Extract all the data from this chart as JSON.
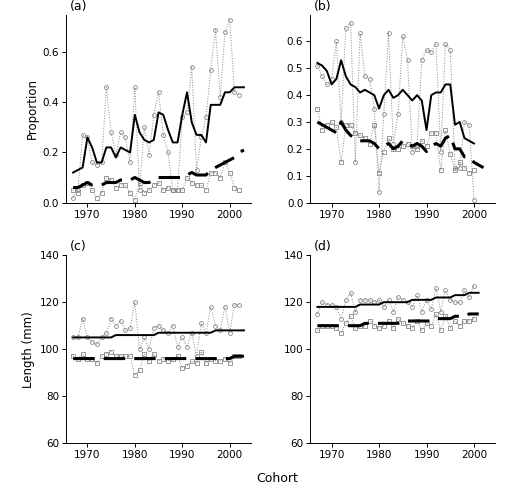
{
  "cohorts": [
    1967,
    1968,
    1969,
    1970,
    1971,
    1972,
    1973,
    1974,
    1975,
    1976,
    1977,
    1978,
    1979,
    1980,
    1981,
    1982,
    1983,
    1984,
    1985,
    1986,
    1987,
    1988,
    1989,
    1990,
    1991,
    1992,
    1993,
    1994,
    1995,
    1996,
    1997,
    1998,
    1999,
    2000,
    2001,
    2002,
    2003
  ],
  "panel_a": {
    "pred_solid": [
      0.12,
      0.13,
      0.14,
      0.26,
      0.22,
      0.16,
      0.16,
      0.22,
      0.22,
      0.18,
      0.22,
      0.21,
      0.2,
      0.35,
      0.28,
      0.25,
      0.24,
      0.25,
      0.36,
      0.35,
      0.29,
      0.24,
      0.24,
      0.35,
      0.44,
      0.32,
      0.27,
      0.27,
      0.24,
      0.39,
      0.39,
      0.39,
      0.44,
      0.44,
      0.46,
      0.46,
      0.46
    ],
    "obs_dotted_circle": [
      0.02,
      0.05,
      0.27,
      0.26,
      0.16,
      0.15,
      0.16,
      0.46,
      0.28,
      0.19,
      0.28,
      0.26,
      0.16,
      0.46,
      0.05,
      0.3,
      0.19,
      0.35,
      0.44,
      0.27,
      0.2,
      0.05,
      0.05,
      0.34,
      0.36,
      0.54,
      0.13,
      0.26,
      0.34,
      0.53,
      0.69,
      0.42,
      0.68,
      0.73,
      0.44,
      0.43,
      null
    ],
    "pred_dashed": [
      0.06,
      0.06,
      0.07,
      0.08,
      0.07,
      0.07,
      0.07,
      0.08,
      0.08,
      0.08,
      0.09,
      0.09,
      0.09,
      0.1,
      0.09,
      0.08,
      0.08,
      0.09,
      0.1,
      0.1,
      0.1,
      0.1,
      0.1,
      0.1,
      0.11,
      0.12,
      0.11,
      0.11,
      0.11,
      0.13,
      0.14,
      0.15,
      0.16,
      0.17,
      0.18,
      0.2,
      0.21
    ],
    "obs_dotted_square": [
      0.05,
      0.04,
      0.07,
      0.08,
      0.05,
      0.02,
      0.04,
      0.1,
      0.09,
      0.06,
      0.07,
      0.07,
      0.04,
      0.01,
      0.08,
      0.04,
      0.05,
      0.07,
      0.08,
      0.05,
      0.06,
      0.05,
      0.05,
      0.05,
      0.1,
      0.08,
      0.07,
      0.07,
      0.05,
      0.12,
      0.12,
      0.1,
      0.16,
      0.12,
      0.06,
      0.05,
      null
    ],
    "ylim": [
      0,
      0.75
    ],
    "yticks": [
      0.0,
      0.2,
      0.4,
      0.6
    ]
  },
  "panel_b": {
    "pred_solid": [
      0.52,
      0.51,
      0.49,
      0.44,
      0.46,
      0.53,
      0.47,
      0.44,
      0.43,
      0.41,
      0.42,
      0.41,
      0.4,
      0.35,
      0.4,
      0.42,
      0.39,
      0.4,
      0.42,
      0.4,
      0.38,
      0.4,
      0.38,
      0.27,
      0.4,
      0.41,
      0.41,
      0.44,
      0.44,
      0.29,
      0.3,
      0.24,
      0.23,
      0.22,
      null,
      null,
      null
    ],
    "obs_dotted_circle": [
      0.51,
      0.47,
      0.44,
      0.46,
      0.6,
      0.3,
      0.65,
      0.67,
      0.15,
      0.63,
      0.47,
      0.46,
      0.35,
      0.04,
      0.33,
      0.63,
      0.22,
      0.33,
      0.62,
      0.53,
      0.19,
      0.21,
      0.53,
      0.57,
      0.56,
      0.59,
      0.19,
      0.59,
      0.57,
      0.13,
      0.13,
      0.3,
      0.29,
      0.01,
      null,
      null,
      null
    ],
    "pred_dashed": [
      0.3,
      0.29,
      0.28,
      0.27,
      0.26,
      0.3,
      0.27,
      0.25,
      0.24,
      0.23,
      0.23,
      0.23,
      0.22,
      0.2,
      0.21,
      0.22,
      0.2,
      0.21,
      0.23,
      0.22,
      0.21,
      0.22,
      0.21,
      0.19,
      0.21,
      0.22,
      0.21,
      0.24,
      0.25,
      0.2,
      0.2,
      0.17,
      0.17,
      0.15,
      0.14,
      0.13,
      null
    ],
    "obs_dotted_square": [
      0.35,
      0.27,
      0.29,
      0.3,
      0.28,
      0.15,
      0.29,
      0.29,
      0.26,
      0.25,
      0.24,
      0.22,
      0.29,
      0.11,
      0.19,
      0.24,
      0.2,
      0.2,
      0.21,
      0.22,
      0.21,
      0.2,
      0.23,
      0.21,
      0.26,
      0.26,
      0.12,
      0.27,
      0.18,
      0.12,
      0.15,
      0.13,
      0.11,
      0.12,
      null,
      null,
      null
    ],
    "ylim": [
      0,
      0.7
    ],
    "yticks": [
      0.0,
      0.1,
      0.2,
      0.3,
      0.4,
      0.5,
      0.6
    ]
  },
  "panel_c": {
    "pred_solid": [
      105,
      105,
      105,
      105,
      105,
      105,
      105,
      105,
      105,
      106,
      106,
      106,
      106,
      106,
      106,
      106,
      106,
      106,
      107,
      107,
      107,
      107,
      107,
      107,
      107,
      107,
      107,
      107,
      107,
      107,
      108,
      108,
      108,
      108,
      108,
      108,
      108
    ],
    "obs_dotted_circle": [
      105,
      105,
      113,
      105,
      103,
      102,
      105,
      107,
      113,
      110,
      112,
      108,
      109,
      120,
      100,
      105,
      100,
      109,
      110,
      108,
      107,
      110,
      101,
      105,
      101,
      107,
      97,
      111,
      107,
      118,
      110,
      108,
      118,
      107,
      119,
      119,
      null
    ],
    "pred_dashed": [
      96,
      96,
      96,
      96,
      96,
      96,
      96,
      96,
      96,
      96,
      96,
      96,
      96,
      96,
      96,
      96,
      96,
      96,
      96,
      96,
      96,
      96,
      96,
      96,
      96,
      96,
      96,
      96,
      96,
      96,
      96,
      96,
      96,
      96,
      97,
      97,
      97
    ],
    "obs_dotted_square": [
      97,
      96,
      98,
      96,
      96,
      94,
      97,
      98,
      99,
      97,
      97,
      97,
      97,
      89,
      91,
      98,
      95,
      98,
      95,
      96,
      95,
      96,
      97,
      92,
      93,
      95,
      94,
      99,
      94,
      96,
      95,
      95,
      96,
      94,
      97,
      97,
      null
    ],
    "ylim": [
      60,
      140
    ],
    "yticks": [
      60,
      80,
      100,
      120,
      140
    ]
  },
  "panel_d": {
    "pred_solid": [
      118,
      118,
      118,
      118,
      118,
      118,
      118,
      118,
      118,
      119,
      119,
      119,
      119,
      119,
      120,
      120,
      120,
      120,
      120,
      120,
      121,
      121,
      121,
      121,
      121,
      122,
      122,
      122,
      122,
      123,
      123,
      123,
      124,
      124,
      124,
      null,
      null
    ],
    "obs_dotted_circle": [
      115,
      120,
      119,
      119,
      118,
      113,
      121,
      124,
      116,
      121,
      121,
      121,
      120,
      121,
      118,
      121,
      116,
      122,
      121,
      120,
      118,
      123,
      116,
      121,
      117,
      126,
      116,
      125,
      121,
      120,
      120,
      125,
      122,
      127,
      null,
      null,
      null
    ],
    "pred_dashed": [
      110,
      110,
      110,
      110,
      110,
      110,
      110,
      110,
      110,
      110,
      111,
      111,
      111,
      111,
      111,
      111,
      111,
      111,
      112,
      112,
      112,
      112,
      112,
      112,
      112,
      113,
      113,
      113,
      113,
      114,
      114,
      114,
      115,
      115,
      115,
      null,
      null
    ],
    "obs_dotted_square": [
      108,
      110,
      110,
      110,
      109,
      107,
      111,
      114,
      109,
      110,
      110,
      112,
      110,
      109,
      110,
      112,
      109,
      113,
      111,
      110,
      109,
      112,
      108,
      111,
      110,
      115,
      108,
      114,
      109,
      112,
      110,
      112,
      112,
      113,
      null,
      null,
      null
    ],
    "ylim": [
      60,
      140
    ],
    "yticks": [
      60,
      80,
      100,
      120,
      140
    ]
  },
  "xlabel": "Cohort",
  "ylabel_proportion": "Proportion",
  "ylabel_length": "Length (mm)",
  "xlim": [
    1965.5,
    2004.5
  ],
  "background": "#f0f0f0"
}
